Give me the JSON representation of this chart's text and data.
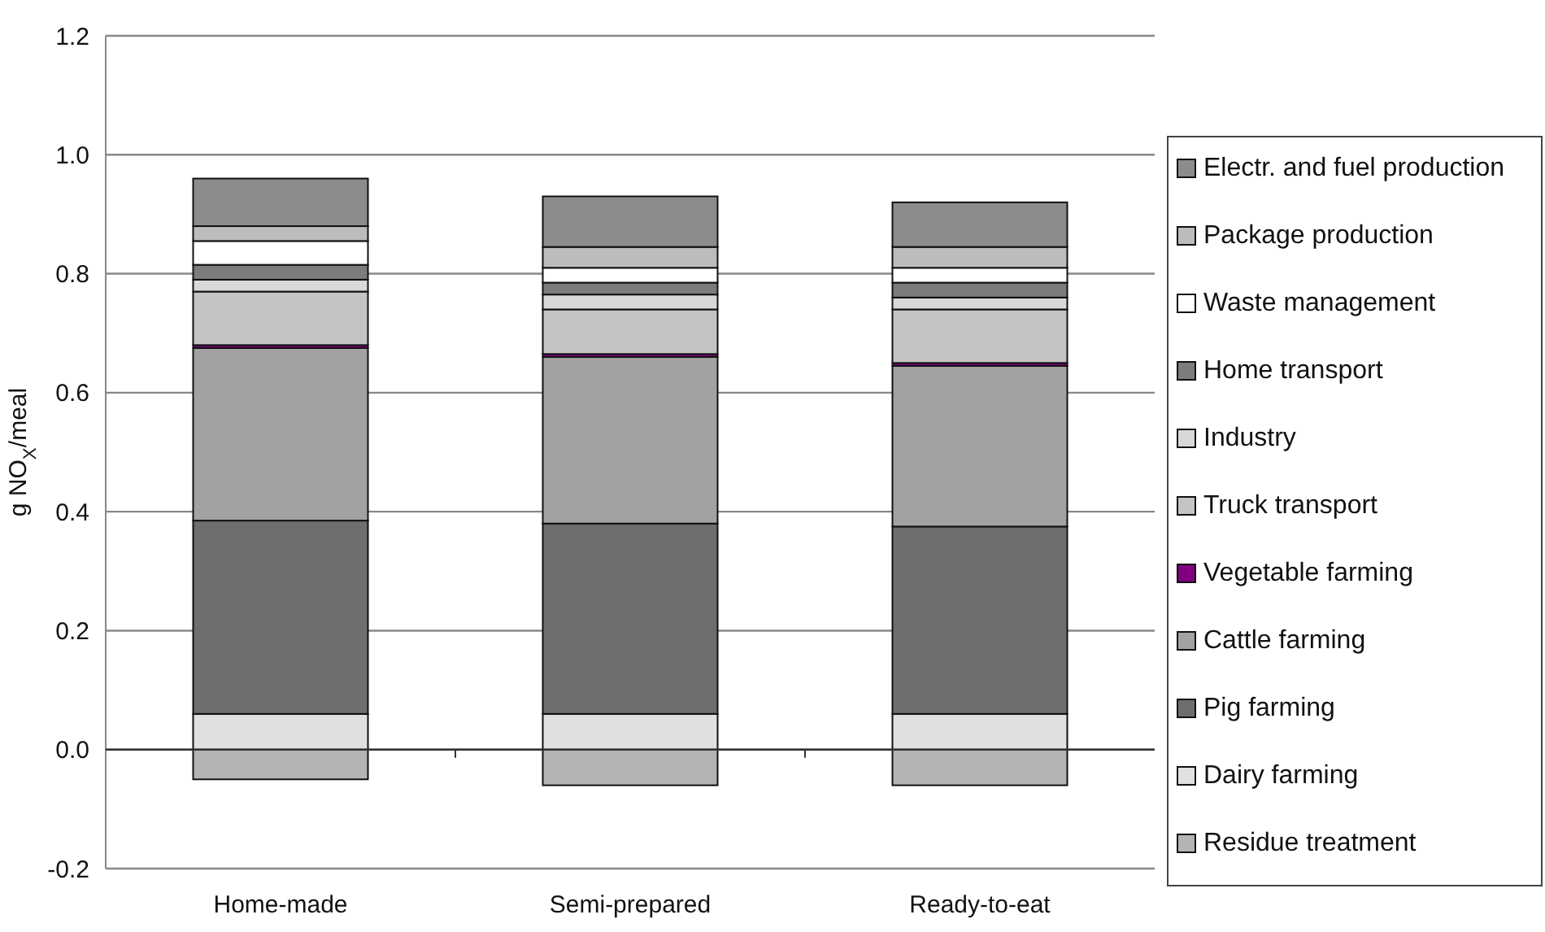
{
  "chart_data": {
    "type": "bar",
    "stacked": true,
    "ylabel": "g NO$_{X}$/meal",
    "categories": [
      "Home-made",
      "Semi-prepared",
      "Ready-to-eat"
    ],
    "series": [
      {
        "name": "Residue treatment",
        "color": "#b4b4b4",
        "values": [
          -0.05,
          -0.06,
          -0.06
        ]
      },
      {
        "name": "Dairy farming",
        "color": "#e0e0e0",
        "values": [
          0.06,
          0.06,
          0.06
        ]
      },
      {
        "name": "Pig farming",
        "color": "#6e6e6e",
        "values": [
          0.325,
          0.32,
          0.315
        ]
      },
      {
        "name": "Cattle farming",
        "color": "#a2a2a2",
        "values": [
          0.29,
          0.28,
          0.27
        ]
      },
      {
        "name": "Vegetable farming",
        "color": "#800080",
        "values": [
          0.005,
          0.005,
          0.005
        ]
      },
      {
        "name": "Truck transport",
        "color": "#c4c4c4",
        "values": [
          0.09,
          0.075,
          0.09
        ]
      },
      {
        "name": "Industry",
        "color": "#d8d8d8",
        "values": [
          0.02,
          0.025,
          0.02
        ]
      },
      {
        "name": "Home transport",
        "color": "#7c7c7c",
        "values": [
          0.025,
          0.02,
          0.025
        ]
      },
      {
        "name": "Waste management",
        "color": "#ffffff",
        "values": [
          0.04,
          0.025,
          0.025
        ]
      },
      {
        "name": "Package production",
        "color": "#bcbcbc",
        "values": [
          0.025,
          0.035,
          0.035
        ]
      },
      {
        "name": "Electr. and fuel production",
        "color": "#8c8c8c",
        "values": [
          0.08,
          0.085,
          0.075
        ]
      }
    ],
    "ylim": [
      -0.2,
      1.2
    ],
    "yticks": [
      {
        "value": -0.2,
        "label": "-0.2"
      },
      {
        "value": 0,
        "label": "0.0"
      },
      {
        "value": 0.2,
        "label": "0.2"
      },
      {
        "value": 0.4,
        "label": "0.4"
      },
      {
        "value": 0.6,
        "label": "0.6"
      },
      {
        "value": 0.8,
        "label": "0.8"
      },
      {
        "value": 1,
        "label": "1.0"
      },
      {
        "value": 1.2,
        "label": "1.2"
      }
    ],
    "grid": "y",
    "legend": "right"
  }
}
